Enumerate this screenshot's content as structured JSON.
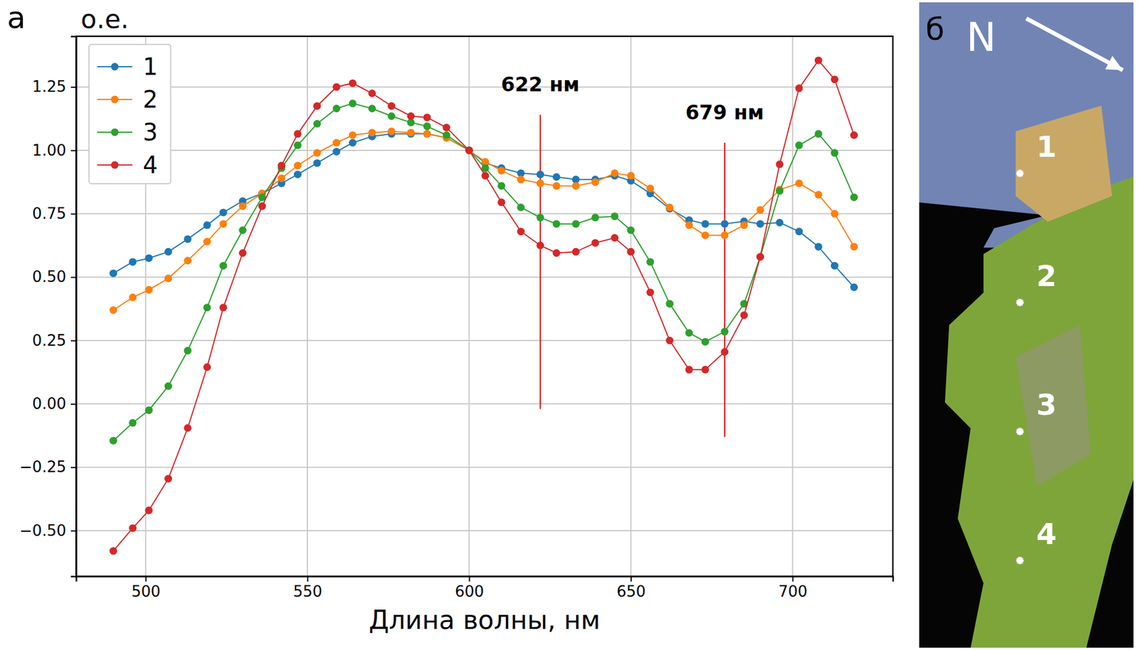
{
  "chart_data": {
    "type": "line",
    "panel_label": "а",
    "y_label": "о.е.",
    "x_label": "Длина волны, нм",
    "x": [
      490,
      496,
      501,
      507,
      513,
      519,
      524,
      530,
      536,
      542,
      547,
      553,
      559,
      564,
      570,
      576,
      582,
      587,
      593,
      600,
      605,
      610,
      616,
      622,
      627,
      633,
      639,
      645,
      650,
      656,
      662,
      668,
      673,
      679,
      685,
      690,
      696,
      702,
      708,
      713,
      719
    ],
    "series": [
      {
        "name": "1",
        "color": "#1f77b4",
        "marker": "circle",
        "values": [
          0.515,
          0.56,
          0.575,
          0.6,
          0.65,
          0.705,
          0.755,
          0.8,
          0.83,
          0.87,
          0.905,
          0.95,
          0.995,
          1.03,
          1.055,
          1.065,
          1.065,
          1.065,
          1.05,
          1.0,
          0.95,
          0.93,
          0.91,
          0.905,
          0.895,
          0.885,
          0.885,
          0.9,
          0.88,
          0.83,
          0.77,
          0.725,
          0.71,
          0.71,
          0.72,
          0.71,
          0.715,
          0.68,
          0.62,
          0.545,
          0.46
        ]
      },
      {
        "name": "2",
        "color": "#ff7f0e",
        "marker": "circle",
        "values": [
          0.37,
          0.42,
          0.45,
          0.495,
          0.565,
          0.64,
          0.71,
          0.78,
          0.83,
          0.89,
          0.94,
          0.99,
          1.03,
          1.06,
          1.07,
          1.075,
          1.07,
          1.065,
          1.05,
          1.0,
          0.955,
          0.92,
          0.885,
          0.87,
          0.86,
          0.86,
          0.875,
          0.91,
          0.9,
          0.85,
          0.775,
          0.705,
          0.665,
          0.665,
          0.705,
          0.765,
          0.845,
          0.87,
          0.825,
          0.75,
          0.62
        ]
      },
      {
        "name": "3",
        "color": "#2ca02c",
        "marker": "circle",
        "values": [
          -0.145,
          -0.075,
          -0.025,
          0.07,
          0.21,
          0.38,
          0.545,
          0.685,
          0.815,
          0.93,
          1.02,
          1.105,
          1.165,
          1.185,
          1.165,
          1.135,
          1.11,
          1.095,
          1.06,
          1.0,
          0.93,
          0.86,
          0.775,
          0.735,
          0.71,
          0.71,
          0.735,
          0.74,
          0.685,
          0.56,
          0.395,
          0.28,
          0.245,
          0.285,
          0.395,
          0.58,
          0.84,
          1.02,
          1.065,
          0.99,
          0.815
        ]
      },
      {
        "name": "4",
        "color": "#d62728",
        "marker": "circle",
        "values": [
          -0.58,
          -0.49,
          -0.42,
          -0.295,
          -0.095,
          0.145,
          0.38,
          0.595,
          0.78,
          0.94,
          1.065,
          1.175,
          1.25,
          1.265,
          1.225,
          1.175,
          1.135,
          1.13,
          1.09,
          1.0,
          0.9,
          0.795,
          0.68,
          0.625,
          0.595,
          0.6,
          0.635,
          0.655,
          0.6,
          0.44,
          0.25,
          0.135,
          0.135,
          0.205,
          0.35,
          0.58,
          0.945,
          1.245,
          1.355,
          1.28,
          1.06
        ]
      }
    ],
    "xlim": [
      478.5,
      731
    ],
    "ylim": [
      -0.68,
      1.45
    ],
    "xticks": [
      500,
      550,
      600,
      650,
      700
    ],
    "yticks": [
      {
        "value": -0.5,
        "label": "−0.50"
      },
      {
        "value": -0.25,
        "label": "−0.25"
      },
      {
        "value": 0,
        "label": "0.00"
      },
      {
        "value": 0.25,
        "label": "0.25"
      },
      {
        "value": 0.5,
        "label": "0.50"
      },
      {
        "value": 0.75,
        "label": "0.75"
      },
      {
        "value": 1.0,
        "label": "1.00"
      },
      {
        "value": 1.25,
        "label": "1.25"
      }
    ],
    "grid": true,
    "legend": "upper left",
    "annotations": [
      {
        "text": "622 нм",
        "x": 622,
        "y_range": [
          -0.02,
          1.14
        ],
        "color": "#e00000"
      },
      {
        "text": "679 нм",
        "x": 679,
        "y_range": [
          -0.13,
          1.03
        ],
        "color": "#e00000"
      }
    ],
    "map": {
      "panel_label": "б",
      "north": "N",
      "points": [
        "1",
        "2",
        "3",
        "4"
      ]
    }
  }
}
